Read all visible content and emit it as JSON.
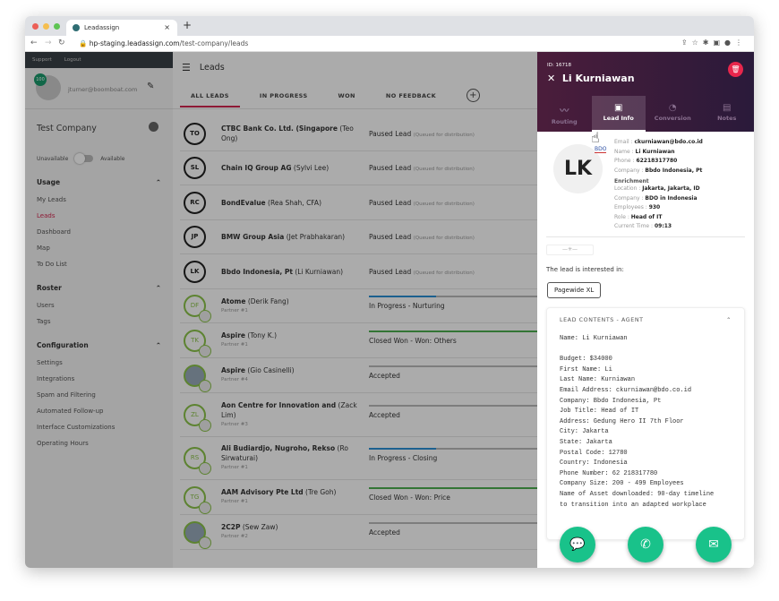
{
  "browser": {
    "tab_title": "Leadassign",
    "url_host": "hp-staging.leadassign.com",
    "url_path": "/test-company/leads"
  },
  "sidebar": {
    "top_links": [
      "Support",
      "Logout"
    ],
    "user_badge": "100",
    "email": "jturner@boomboat.com",
    "company": "Test Company",
    "unavailable": "Unavailable",
    "available": "Available",
    "sections": [
      {
        "title": "Usage",
        "items": [
          "My Leads",
          "Leads",
          "Dashboard",
          "Map",
          "To Do List"
        ]
      },
      {
        "title": "Roster",
        "items": [
          "Users",
          "Tags"
        ]
      },
      {
        "title": "Configuration",
        "items": [
          "Settings",
          "Integrations",
          "Spam and Filtering",
          "Automated Follow-up",
          "Interface Customizations",
          "Operating Hours"
        ]
      }
    ],
    "active_item": "Leads"
  },
  "main": {
    "title": "Leads",
    "tabs": [
      "ALL LEADS",
      "IN PROGRESS",
      "WON",
      "NO FEEDBACK"
    ],
    "active_tab": "ALL LEADS",
    "rows": [
      {
        "initials": "TO",
        "company": "CTBC Bank Co. Ltd. (Singapore",
        "contact": "(Teo Ong)",
        "status": "Paused Lead",
        "note": "(Queued for distribution)",
        "type": "paused"
      },
      {
        "initials": "SL",
        "company": "Chain IQ Group AG",
        "contact": "(Sylvi Lee)",
        "status": "Paused Lead",
        "note": "(Queued for distribution)",
        "type": "paused"
      },
      {
        "initials": "RC",
        "company": "BondEvalue",
        "contact": "(Rea Shah, CFA)",
        "status": "Paused Lead",
        "note": "(Queued for distribution)",
        "type": "paused"
      },
      {
        "initials": "JP",
        "company": "BMW Group Asia",
        "contact": "(Jet Prabhakaran)",
        "status": "Paused Lead",
        "note": "(Queued for distribution)",
        "type": "paused"
      },
      {
        "initials": "LK",
        "company": "Bbdo Indonesia, Pt",
        "contact": "(Li Kurniawan)",
        "status": "Paused Lead",
        "note": "(Queued for distribution)",
        "type": "paused"
      },
      {
        "initials": "DF",
        "company": "Atome",
        "contact": "(Derik Fang)",
        "partner": "Partner #1",
        "status": "In Progress - Nurturing",
        "progress": 40,
        "bar_color": "#2a8fd6"
      },
      {
        "initials": "TK",
        "company": "Aspire",
        "contact": "(Tony K.)",
        "partner": "Partner #1",
        "status": "Closed Won - Won: Others",
        "progress": 100,
        "bar_color": "#4caf50"
      },
      {
        "initials": "",
        "company": "Aspire",
        "contact": "(Gio Casinelli)",
        "partner": "Partner #4",
        "status": "Accepted",
        "progress": 0,
        "bar_color": "#999",
        "photo": true
      },
      {
        "initials": "ZL",
        "company": "Aon Centre for Innovation and",
        "contact": "(Zack Lim)",
        "partner": "Partner #3",
        "status": "Accepted",
        "progress": 0,
        "bar_color": "#999"
      },
      {
        "initials": "RS",
        "company": "Ali Budiardjo, Nugroho, Rekso",
        "contact": "(Ro Sirwaturai)",
        "partner": "Partner #1",
        "status": "In Progress - Closing",
        "progress": 40,
        "bar_color": "#2a8fd6"
      },
      {
        "initials": "TG",
        "company": "AAM Advisory Pte Ltd",
        "contact": "(Tre Goh)",
        "partner": "Partner #1",
        "status": "Closed Won - Won: Price",
        "progress": 100,
        "bar_color": "#4caf50"
      },
      {
        "initials": "",
        "company": "2C2P",
        "contact": "(Sew Zaw)",
        "partner": "Partner #2",
        "status": "Accepted",
        "progress": 0,
        "bar_color": "#999",
        "photo": true
      }
    ]
  },
  "panel": {
    "id": "ID: 16718",
    "name": "Li Kurniawan",
    "tabs": [
      "Routing",
      "Lead Info",
      "Conversion",
      "Notes"
    ],
    "active_tab": "Lead Info",
    "avatar": "LK",
    "company_logo": "BDO",
    "contact": [
      {
        "k": "Email",
        "v": "ckurniawan@bdo.co.id"
      },
      {
        "k": "Name",
        "v": "Li Kurniawan"
      },
      {
        "k": "Phone",
        "v": "62218317780"
      },
      {
        "k": "Company",
        "v": "Bbdo Indonesia, Pt"
      }
    ],
    "enrichment_title": "Enrichment",
    "enrichment": [
      {
        "k": "Location",
        "v": "Jakarta, Jakarta, ID"
      },
      {
        "k": "Company",
        "v": "BDO in Indonesia"
      },
      {
        "k": "Employees",
        "v": "930"
      },
      {
        "k": "Role",
        "v": "Head of IT"
      },
      {
        "k": "Current Time",
        "v": "09:13"
      }
    ],
    "interested_label": "The lead is interested in:",
    "product": "Pagewide XL",
    "contents_title": "LEAD CONTENTS - AGENT",
    "contents": "Name: Li Kurniawan\n\nBudget: $34000\nFirst Name: Li\nLast Name: Kurniawan\nEmail Address: ckurniawan@bdo.co.id\nCompany: Bbdo Indonesia, Pt\nJob Title: Head of IT\nAddress: Gedung Hero II 7th Floor\nCity: Jakarta\nState: Jakarta\nPostal Code: 12780\nCountry: Indonesia\nPhone Number: 62 218317780\nCompany Size: 200 - 499 Employees\nName of Asset downloaded: 90-day timeline\nto transition into an adapted workplace",
    "accent": "#19c28a"
  }
}
